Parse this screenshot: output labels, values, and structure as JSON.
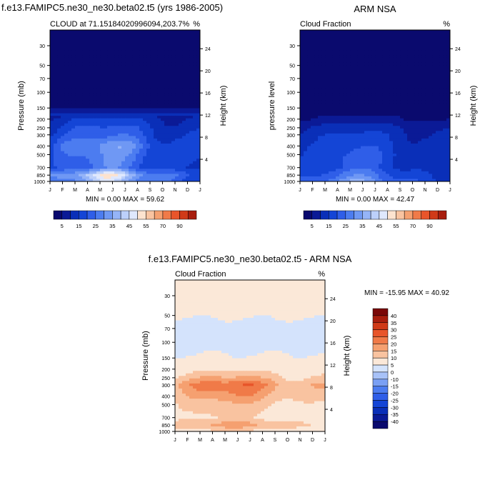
{
  "colors": {
    "cloud_levels": [
      "#0a0a6e",
      "#0b1a96",
      "#0a2fb8",
      "#1445d6",
      "#2f5ee8",
      "#4c7cf0",
      "#6f98f4",
      "#95b4f8",
      "#bcd0fb",
      "#dfe8fd",
      "#fde3cf",
      "#f9c3a0",
      "#f5a070",
      "#f07a48",
      "#e8552a",
      "#d03a18",
      "#a81e0e",
      "#7a0808"
    ],
    "diff_levels": [
      "#0a0a6e",
      "#0b1a96",
      "#0a2fb8",
      "#1445d6",
      "#2f5ee8",
      "#4c7cf0",
      "#7aa0f4",
      "#a8c2f8",
      "#d4e3fc",
      "#fbe8d8",
      "#f9c3a0",
      "#f5a070",
      "#f07a48",
      "#e8552a",
      "#d03a18",
      "#a81e0e",
      "#7a0808"
    ]
  },
  "chart_data": [
    {
      "type": "heatmap",
      "id": "model",
      "title": "f.e13.FAMIPC5.ne30_ne30.beta02.t5 (yrs 1986-2005)",
      "left_label": "CLOUD at 71.15184020996094,203.7%",
      "right_label": "%",
      "ylabel": "Pressure (mb)",
      "ylabel_right": "Height (km)",
      "x_ticks": [
        "J",
        "F",
        "M",
        "A",
        "M",
        "J",
        "J",
        "A",
        "S",
        "O",
        "N",
        "D",
        "J"
      ],
      "p_ticks": [
        30,
        50,
        70,
        100,
        150,
        200,
        250,
        300,
        400,
        500,
        700,
        850,
        1000
      ],
      "h_ticks": [
        24,
        20,
        16,
        12,
        8,
        4
      ],
      "min_max": "MIN =   0.00 MAX =  59.62",
      "min": 0.0,
      "max": 59.62,
      "levels": [
        1,
        5,
        10,
        15,
        20,
        25,
        30,
        35,
        40,
        45,
        50,
        55,
        60,
        70,
        80,
        90
      ],
      "colorbar_labels": [
        "5",
        "15",
        "25",
        "35",
        "45",
        "55",
        "70",
        "90"
      ],
      "profile": [
        {
          "p": 30,
          "v": 0
        },
        {
          "p": 150,
          "v": 1
        },
        {
          "p": 200,
          "v": 8
        },
        {
          "p": 250,
          "v": 12
        },
        {
          "p": 300,
          "v": 14
        },
        {
          "p": 400,
          "v": 20
        },
        {
          "p": 500,
          "v": 18
        },
        {
          "p": 700,
          "v": 16
        },
        {
          "p": 850,
          "v": 30
        },
        {
          "p": 1000,
          "v": 25
        }
      ]
    },
    {
      "type": "heatmap",
      "id": "obs",
      "title": "ARM NSA",
      "left_label": "Cloud Fraction",
      "right_label": "%",
      "ylabel": "pressure level",
      "ylabel_right": "Height (km)",
      "x_ticks": [
        "J",
        "F",
        "M",
        "A",
        "M",
        "J",
        "J",
        "A",
        "S",
        "O",
        "N",
        "D",
        "J"
      ],
      "p_ticks": [
        30,
        50,
        70,
        100,
        150,
        200,
        250,
        300,
        400,
        500,
        700,
        850,
        1000
      ],
      "h_ticks": [
        24,
        20,
        16,
        12,
        8,
        4
      ],
      "min_max": "MIN =   0.00 MAX =  42.47",
      "min": 0.0,
      "max": 42.47,
      "levels": [
        1,
        5,
        10,
        15,
        20,
        25,
        30,
        35,
        40,
        45,
        50,
        55,
        60,
        70,
        80,
        90
      ],
      "colorbar_labels": [
        "5",
        "15",
        "25",
        "35",
        "45",
        "55",
        "70",
        "90"
      ],
      "profile": [
        {
          "p": 30,
          "v": 0
        },
        {
          "p": 200,
          "v": 1
        },
        {
          "p": 250,
          "v": 6
        },
        {
          "p": 300,
          "v": 8
        },
        {
          "p": 400,
          "v": 10
        },
        {
          "p": 500,
          "v": 12
        },
        {
          "p": 700,
          "v": 12
        },
        {
          "p": 850,
          "v": 16
        },
        {
          "p": 1000,
          "v": 20
        }
      ]
    },
    {
      "type": "heatmap",
      "id": "diff",
      "title": "f.e13.FAMIPC5.ne30_ne30.beta02.t5 - ARM NSA",
      "left_label": "Cloud Fraction",
      "right_label": "%",
      "ylabel": "Pressure (mb)",
      "ylabel_right": "Height (km)",
      "x_ticks": [
        "J",
        "F",
        "M",
        "A",
        "M",
        "J",
        "J",
        "A",
        "S",
        "O",
        "N",
        "D",
        "J"
      ],
      "p_ticks": [
        30,
        50,
        70,
        100,
        150,
        200,
        250,
        300,
        400,
        500,
        700,
        850,
        1000
      ],
      "h_ticks": [
        24,
        20,
        16,
        12,
        8,
        4
      ],
      "min_max": "MIN = -15.95 MAX =  40.92",
      "min": -15.95,
      "max": 40.92,
      "levels": [
        -40,
        -35,
        -30,
        -25,
        -20,
        -15,
        -10,
        -5,
        0,
        5,
        10,
        15,
        20,
        25,
        30,
        35,
        40
      ],
      "colorbar_labels": [
        "40",
        "35",
        "30",
        "25",
        "20",
        "15",
        "10",
        "5",
        "0",
        "-10",
        "-15",
        "-20",
        "-25",
        "-30",
        "-35",
        "-40"
      ],
      "profile": [
        {
          "p": 30,
          "v": 2
        },
        {
          "p": 50,
          "v": 1
        },
        {
          "p": 70,
          "v": -3
        },
        {
          "p": 100,
          "v": -3
        },
        {
          "p": 150,
          "v": 1
        },
        {
          "p": 200,
          "v": 3
        },
        {
          "p": 250,
          "v": 8
        },
        {
          "p": 300,
          "v": 14
        },
        {
          "p": 400,
          "v": 10
        },
        {
          "p": 500,
          "v": 6
        },
        {
          "p": 700,
          "v": 4
        },
        {
          "p": 850,
          "v": 9
        },
        {
          "p": 1000,
          "v": 3
        }
      ]
    }
  ]
}
